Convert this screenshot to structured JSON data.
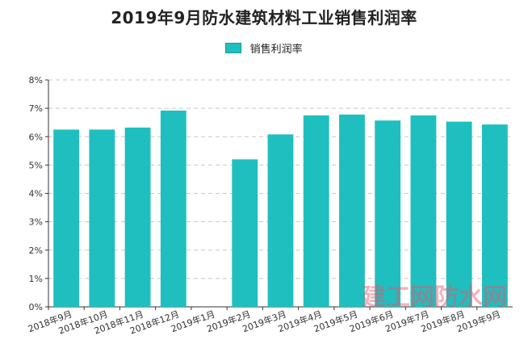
{
  "chart_data": {
    "type": "bar",
    "title": "2019年9月防水建筑材料工业销售利润率",
    "categories": [
      "2018年9月",
      "2018年10月",
      "2018年11月",
      "2018年12月",
      "2019年1月",
      "2019年2月",
      "2019年3月",
      "2019年4月",
      "2019年5月",
      "2019年6月",
      "2019年7月",
      "2019年8月",
      "2019年9月"
    ],
    "series": [
      {
        "name": "销售利润率",
        "values": [
          6.25,
          6.25,
          6.32,
          6.92,
          null,
          5.2,
          6.08,
          6.75,
          6.78,
          6.57,
          6.75,
          6.53,
          6.43
        ]
      }
    ],
    "ylim": [
      0,
      8
    ],
    "yticks": [
      "0%",
      "1%",
      "2%",
      "3%",
      "4%",
      "5%",
      "6%",
      "7%",
      "8%"
    ],
    "grid": true,
    "legend": "top",
    "bar_color": "#1fbfbf",
    "bar_edge_color": "#149a9a"
  },
  "watermark": {
    "text": "建工网防水网",
    "color": "#e8556b"
  }
}
